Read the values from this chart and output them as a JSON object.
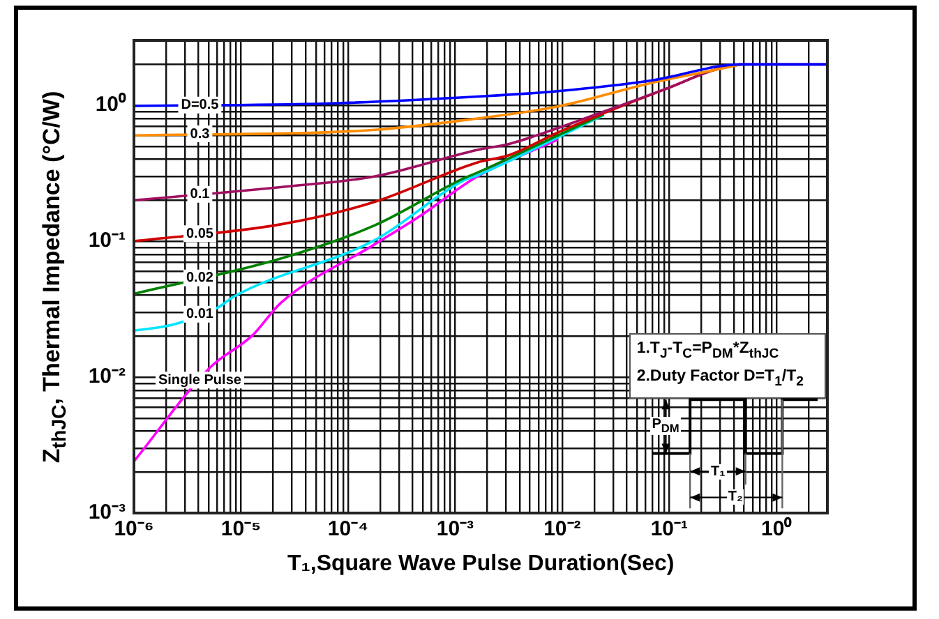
{
  "chart_data": {
    "type": "line",
    "xlabel": "T₁,Square Wave Pulse Duration(Sec)",
    "ylabel": "Z$_{thJC}$, Thermal  Impedance (°C/W)",
    "log": "xy",
    "grid": true,
    "legend": false,
    "marker": "none",
    "line_style": "solid",
    "xlim": [
      1e-06,
      3
    ],
    "ylim": [
      0.001,
      3
    ],
    "xticks": [
      {
        "value": 1e-06,
        "label": "10⁻⁶"
      },
      {
        "value": 1e-05,
        "label": "10⁻⁵"
      },
      {
        "value": 0.0001,
        "label": "10⁻⁴"
      },
      {
        "value": 0.001,
        "label": "10⁻³"
      },
      {
        "value": 0.01,
        "label": "10⁻²"
      },
      {
        "value": 0.1,
        "label": "10⁻¹"
      },
      {
        "value": 1,
        "label": "10⁰"
      }
    ],
    "yticks": [
      {
        "value": 0.001,
        "label": "10⁻³"
      },
      {
        "value": 0.01,
        "label": "10⁻²"
      },
      {
        "value": 0.1,
        "label": "10⁻¹"
      },
      {
        "value": 1,
        "label": "10⁰"
      }
    ],
    "annotations": [
      "1.T$_{J}$-T$_{C}$=P$_{DM}$*Z$_{thJC}$",
      "2.Duty Factor D=T$_{1}$/T$_{2}$",
      "P$_{DM}$",
      "T₁",
      "T₂"
    ],
    "series": [
      {
        "name": "D=0.5",
        "color": "#0000ff",
        "x": [
          1e-06,
          6.3e-05,
          0.00162,
          0.0091,
          0.068,
          0.47,
          3
        ],
        "values": [
          0.99,
          1.03,
          1.16,
          1.27,
          1.52,
          2.0,
          2.0
        ]
      },
      {
        "name": "0.3",
        "color": "#ff8c00",
        "x": [
          1e-06,
          0.000178,
          0.00162,
          0.0091,
          0.068,
          0.257,
          0.47
        ],
        "values": [
          0.6,
          0.66,
          0.8,
          0.98,
          1.46,
          1.81,
          2.0
        ]
      },
      {
        "name": "0.1",
        "color": "#a01060",
        "x": [
          1e-06,
          2.34e-05,
          0.000178,
          0.00162,
          0.0032,
          0.0091,
          0.0245,
          0.1,
          0.257,
          0.47,
          3
        ],
        "values": [
          0.2,
          0.25,
          0.3,
          0.47,
          0.52,
          0.68,
          0.9,
          1.35,
          1.81,
          2.0,
          2.0
        ]
      },
      {
        "name": "0.05",
        "color": "#d00000",
        "x": [
          1e-06,
          2.34e-05,
          0.000178,
          0.00162,
          0.0032,
          0.0091,
          0.0245,
          0.1,
          0.257,
          0.47
        ],
        "values": [
          0.1,
          0.133,
          0.195,
          0.38,
          0.43,
          0.63,
          0.875,
          1.35,
          1.81,
          2.0
        ]
      },
      {
        "name": "0.02",
        "color": "#008000",
        "x": [
          1e-06,
          2.34e-05,
          0.000178,
          0.0012,
          0.00162,
          0.0091,
          0.0245
        ],
        "values": [
          0.041,
          0.0745,
          0.131,
          0.29,
          0.32,
          0.6,
          0.86
        ]
      },
      {
        "name": "0.01",
        "color": "#00e5ff",
        "x": [
          1e-06,
          2.3e-06,
          6.3e-06,
          8.5e-06,
          0.000178,
          0.0012,
          0.00162,
          0.0091,
          0.0245
        ],
        "values": [
          0.022,
          0.0243,
          0.033,
          0.039,
          0.102,
          0.28,
          0.305,
          0.58,
          0.85
        ]
      },
      {
        "name": "Single Pulse",
        "color": "#ff00ff",
        "x": [
          1e-06,
          5.1e-06,
          1.29e-05,
          2.34e-05,
          0.000178,
          0.00048,
          0.00162,
          0.0091
        ],
        "values": [
          0.0024,
          0.0117,
          0.0204,
          0.035,
          0.095,
          0.155,
          0.3,
          0.56
        ]
      }
    ]
  }
}
